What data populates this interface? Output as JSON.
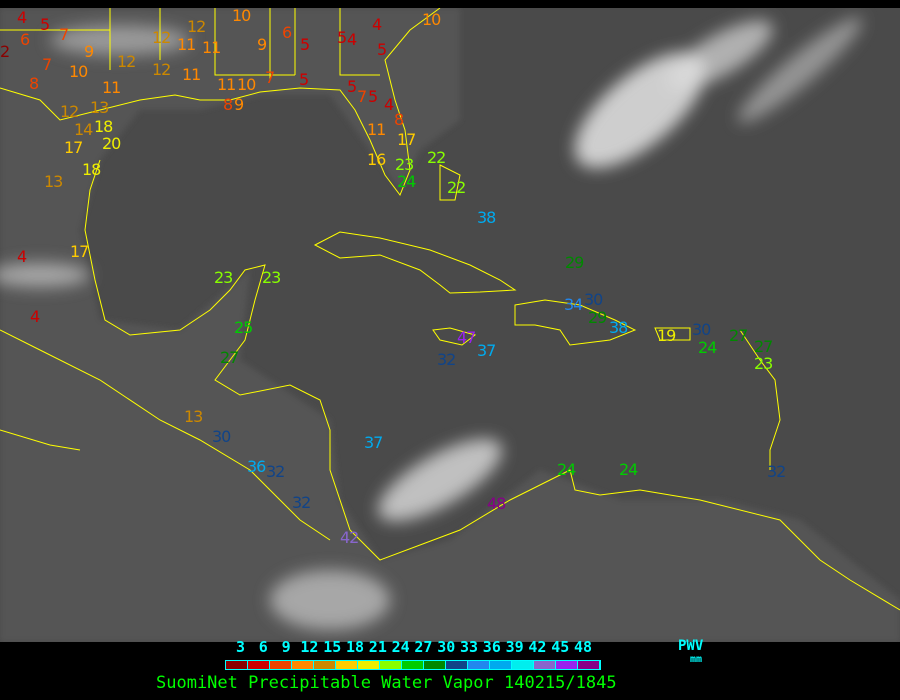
{
  "title": "SuomiNet Precipitable Water Vapor 140215/1845",
  "legend": {
    "unit_label": "PWV",
    "unit": "mm",
    "ticks": [
      "3",
      "6",
      "9",
      "12",
      "15",
      "18",
      "21",
      "24",
      "27",
      "30",
      "33",
      "36",
      "39",
      "42",
      "45",
      "48"
    ],
    "colors": [
      "#8b0000",
      "#cc0000",
      "#ee4400",
      "#ff8800",
      "#cc8800",
      "#ffcc00",
      "#eeee00",
      "#88ff00",
      "#00cc00",
      "#008800",
      "#114488",
      "#2288ee",
      "#00aaee",
      "#00eeee",
      "#8866cc",
      "#9922ee",
      "#880088"
    ]
  },
  "map": {
    "background": "infrared satellite imagery (grayscale)",
    "coastline_color": "#ffff00",
    "stations": [
      "4",
      "5",
      "6",
      "7",
      "2",
      "9",
      "7",
      "10",
      "8",
      "12",
      "11",
      "12",
      "13",
      "14",
      "18",
      "20",
      "17",
      "18",
      "13",
      "12",
      "12",
      "11",
      "12",
      "11",
      "11",
      "11",
      "10",
      "9",
      "8",
      "10",
      "9",
      "6",
      "5",
      "5",
      "7",
      "5",
      "4",
      "4",
      "5",
      "5",
      "7",
      "5",
      "4",
      "8",
      "11",
      "17",
      "16",
      "23",
      "24",
      "22",
      "22",
      "38",
      "29",
      "23",
      "23",
      "25",
      "27",
      "13",
      "30",
      "36",
      "32",
      "32",
      "42",
      "47",
      "37",
      "32",
      "37",
      "34",
      "30",
      "29",
      "38",
      "19",
      "30",
      "24",
      "27",
      "27",
      "23",
      "24",
      "24",
      "48",
      "32",
      "17",
      "4",
      "4",
      "10"
    ]
  }
}
